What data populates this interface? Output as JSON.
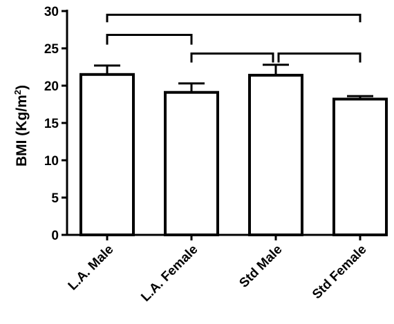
{
  "chart_data": {
    "type": "bar",
    "categories": [
      "L.A. Male",
      "L.A. Female",
      "Std Male",
      "Std Female"
    ],
    "values": [
      21.5,
      19.1,
      21.4,
      18.2
    ],
    "error_upper": [
      22.7,
      20.3,
      22.8,
      18.6
    ],
    "ylabel": {
      "main": "BMI (Kg/m",
      "sup": "2",
      "end": ")"
    },
    "ylim": [
      0,
      30
    ],
    "yticks": [
      0,
      5,
      10,
      15,
      20,
      25,
      30
    ],
    "ytick_labels": [
      "0",
      "5",
      "10",
      "15",
      "20",
      "25",
      "30"
    ],
    "comparisons": [
      {
        "from": 0,
        "to": 3
      },
      {
        "from": 0,
        "to": 1
      },
      {
        "from": 1,
        "to": 2
      },
      {
        "from": 2,
        "to": 3
      }
    ],
    "bar_color": "#ffffff",
    "stroke_color": "#000000",
    "grid": false
  }
}
